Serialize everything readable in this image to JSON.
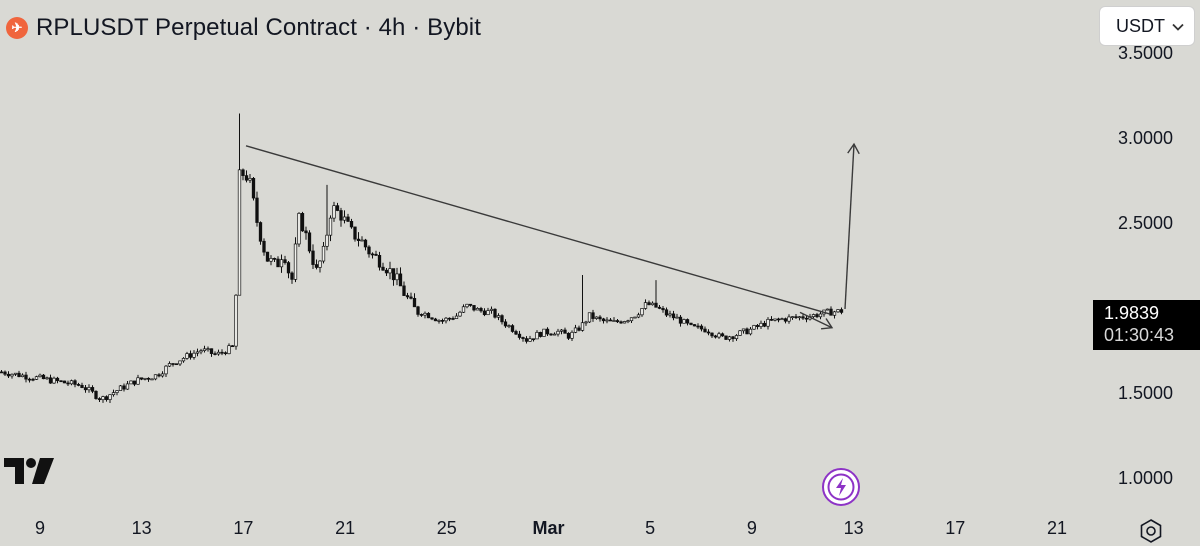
{
  "header": {
    "coin_icon_glyph": "✈",
    "title": "RPLUSDT Perpetual Contract · 4h · Bybit"
  },
  "currency_select": {
    "value": "USDT"
  },
  "price_tag": {
    "price": "1.9839",
    "countdown": "01:30:43"
  },
  "colors": {
    "background": "#d9d9d4",
    "candle": "#111111",
    "trendline": "#3a3a3a",
    "coin_icon": "#f0653d",
    "bolt_badge": "#8d33c6"
  },
  "icons": {
    "coin": "rocket-pool-coin-icon",
    "logo": "tradingview-logo-icon",
    "bolt": "lightning-bolt-icon",
    "settings": "gear-icon",
    "dropdown": "chevron-down-icon"
  },
  "chart_data": {
    "type": "candlestick",
    "title": "RPLUSDT Perpetual Contract · 4h · Bybit",
    "y_axis": {
      "ticks": [
        "3.5000",
        "3.0000",
        "2.5000",
        "1.5000",
        "1.0000"
      ],
      "range": [
        0.93,
        3.55
      ]
    },
    "x_axis": {
      "ticks": [
        {
          "label": "9",
          "bold": false
        },
        {
          "label": "13",
          "bold": false
        },
        {
          "label": "17",
          "bold": false
        },
        {
          "label": "21",
          "bold": false
        },
        {
          "label": "25",
          "bold": false
        },
        {
          "label": "Mar",
          "bold": true
        },
        {
          "label": "5",
          "bold": false
        },
        {
          "label": "9",
          "bold": false
        },
        {
          "label": "13",
          "bold": false
        },
        {
          "label": "17",
          "bold": false
        },
        {
          "label": "21",
          "bold": false
        }
      ]
    },
    "last_price": 1.9839,
    "price_path_close": [
      [
        0,
        1.63
      ],
      [
        20,
        1.61
      ],
      [
        40,
        1.59
      ],
      [
        60,
        1.57
      ],
      [
        80,
        1.55
      ],
      [
        100,
        1.47
      ],
      [
        115,
        1.52
      ],
      [
        135,
        1.58
      ],
      [
        155,
        1.61
      ],
      [
        170,
        1.68
      ],
      [
        185,
        1.72
      ],
      [
        200,
        1.76
      ],
      [
        215,
        1.73
      ],
      [
        233,
        1.78
      ],
      [
        238,
        2.78
      ],
      [
        243,
        2.8
      ],
      [
        248,
        2.75
      ],
      [
        256,
        2.5
      ],
      [
        265,
        2.3
      ],
      [
        275,
        2.25
      ],
      [
        282,
        2.35
      ],
      [
        290,
        2.15
      ],
      [
        298,
        2.55
      ],
      [
        305,
        2.42
      ],
      [
        315,
        2.22
      ],
      [
        322,
        2.33
      ],
      [
        330,
        2.6
      ],
      [
        340,
        2.55
      ],
      [
        350,
        2.45
      ],
      [
        360,
        2.4
      ],
      [
        370,
        2.32
      ],
      [
        380,
        2.28
      ],
      [
        392,
        2.2
      ],
      [
        402,
        2.1
      ],
      [
        412,
        2.0
      ],
      [
        425,
        1.97
      ],
      [
        440,
        1.93
      ],
      [
        455,
        1.96
      ],
      [
        465,
        2.02
      ],
      [
        478,
        1.99
      ],
      [
        490,
        1.98
      ],
      [
        500,
        1.93
      ],
      [
        512,
        1.88
      ],
      [
        525,
        1.82
      ],
      [
        540,
        1.86
      ],
      [
        555,
        1.87
      ],
      [
        568,
        1.84
      ],
      [
        580,
        1.9
      ],
      [
        588,
        1.96
      ],
      [
        600,
        1.93
      ],
      [
        612,
        1.92
      ],
      [
        625,
        1.94
      ],
      [
        635,
        1.97
      ],
      [
        645,
        2.03
      ],
      [
        655,
        2.01
      ],
      [
        665,
        1.97
      ],
      [
        677,
        1.94
      ],
      [
        690,
        1.89
      ],
      [
        705,
        1.88
      ],
      [
        720,
        1.83
      ],
      [
        735,
        1.85
      ],
      [
        750,
        1.88
      ],
      [
        765,
        1.92
      ],
      [
        780,
        1.94
      ],
      [
        795,
        1.95
      ],
      [
        810,
        1.96
      ],
      [
        825,
        1.98
      ],
      [
        843,
        1.99
      ]
    ],
    "wick_spikes": [
      {
        "x": 237,
        "high": 3.15
      },
      {
        "x": 325,
        "high": 2.73
      },
      {
        "x": 298,
        "high": 2.57
      },
      {
        "x": 582,
        "high": 2.2
      },
      {
        "x": 654,
        "high": 2.17
      }
    ],
    "annotations": {
      "trendline": {
        "start": [
          246,
          2.96
        ],
        "end": [
          830,
          1.97
        ]
      },
      "arrow_along_trend": {
        "from": [
          800,
          1.98
        ],
        "to": [
          832,
          1.89
        ]
      },
      "projection_arrow": {
        "from": [
          845,
          2.0
        ],
        "to": [
          854,
          2.97
        ]
      }
    }
  }
}
